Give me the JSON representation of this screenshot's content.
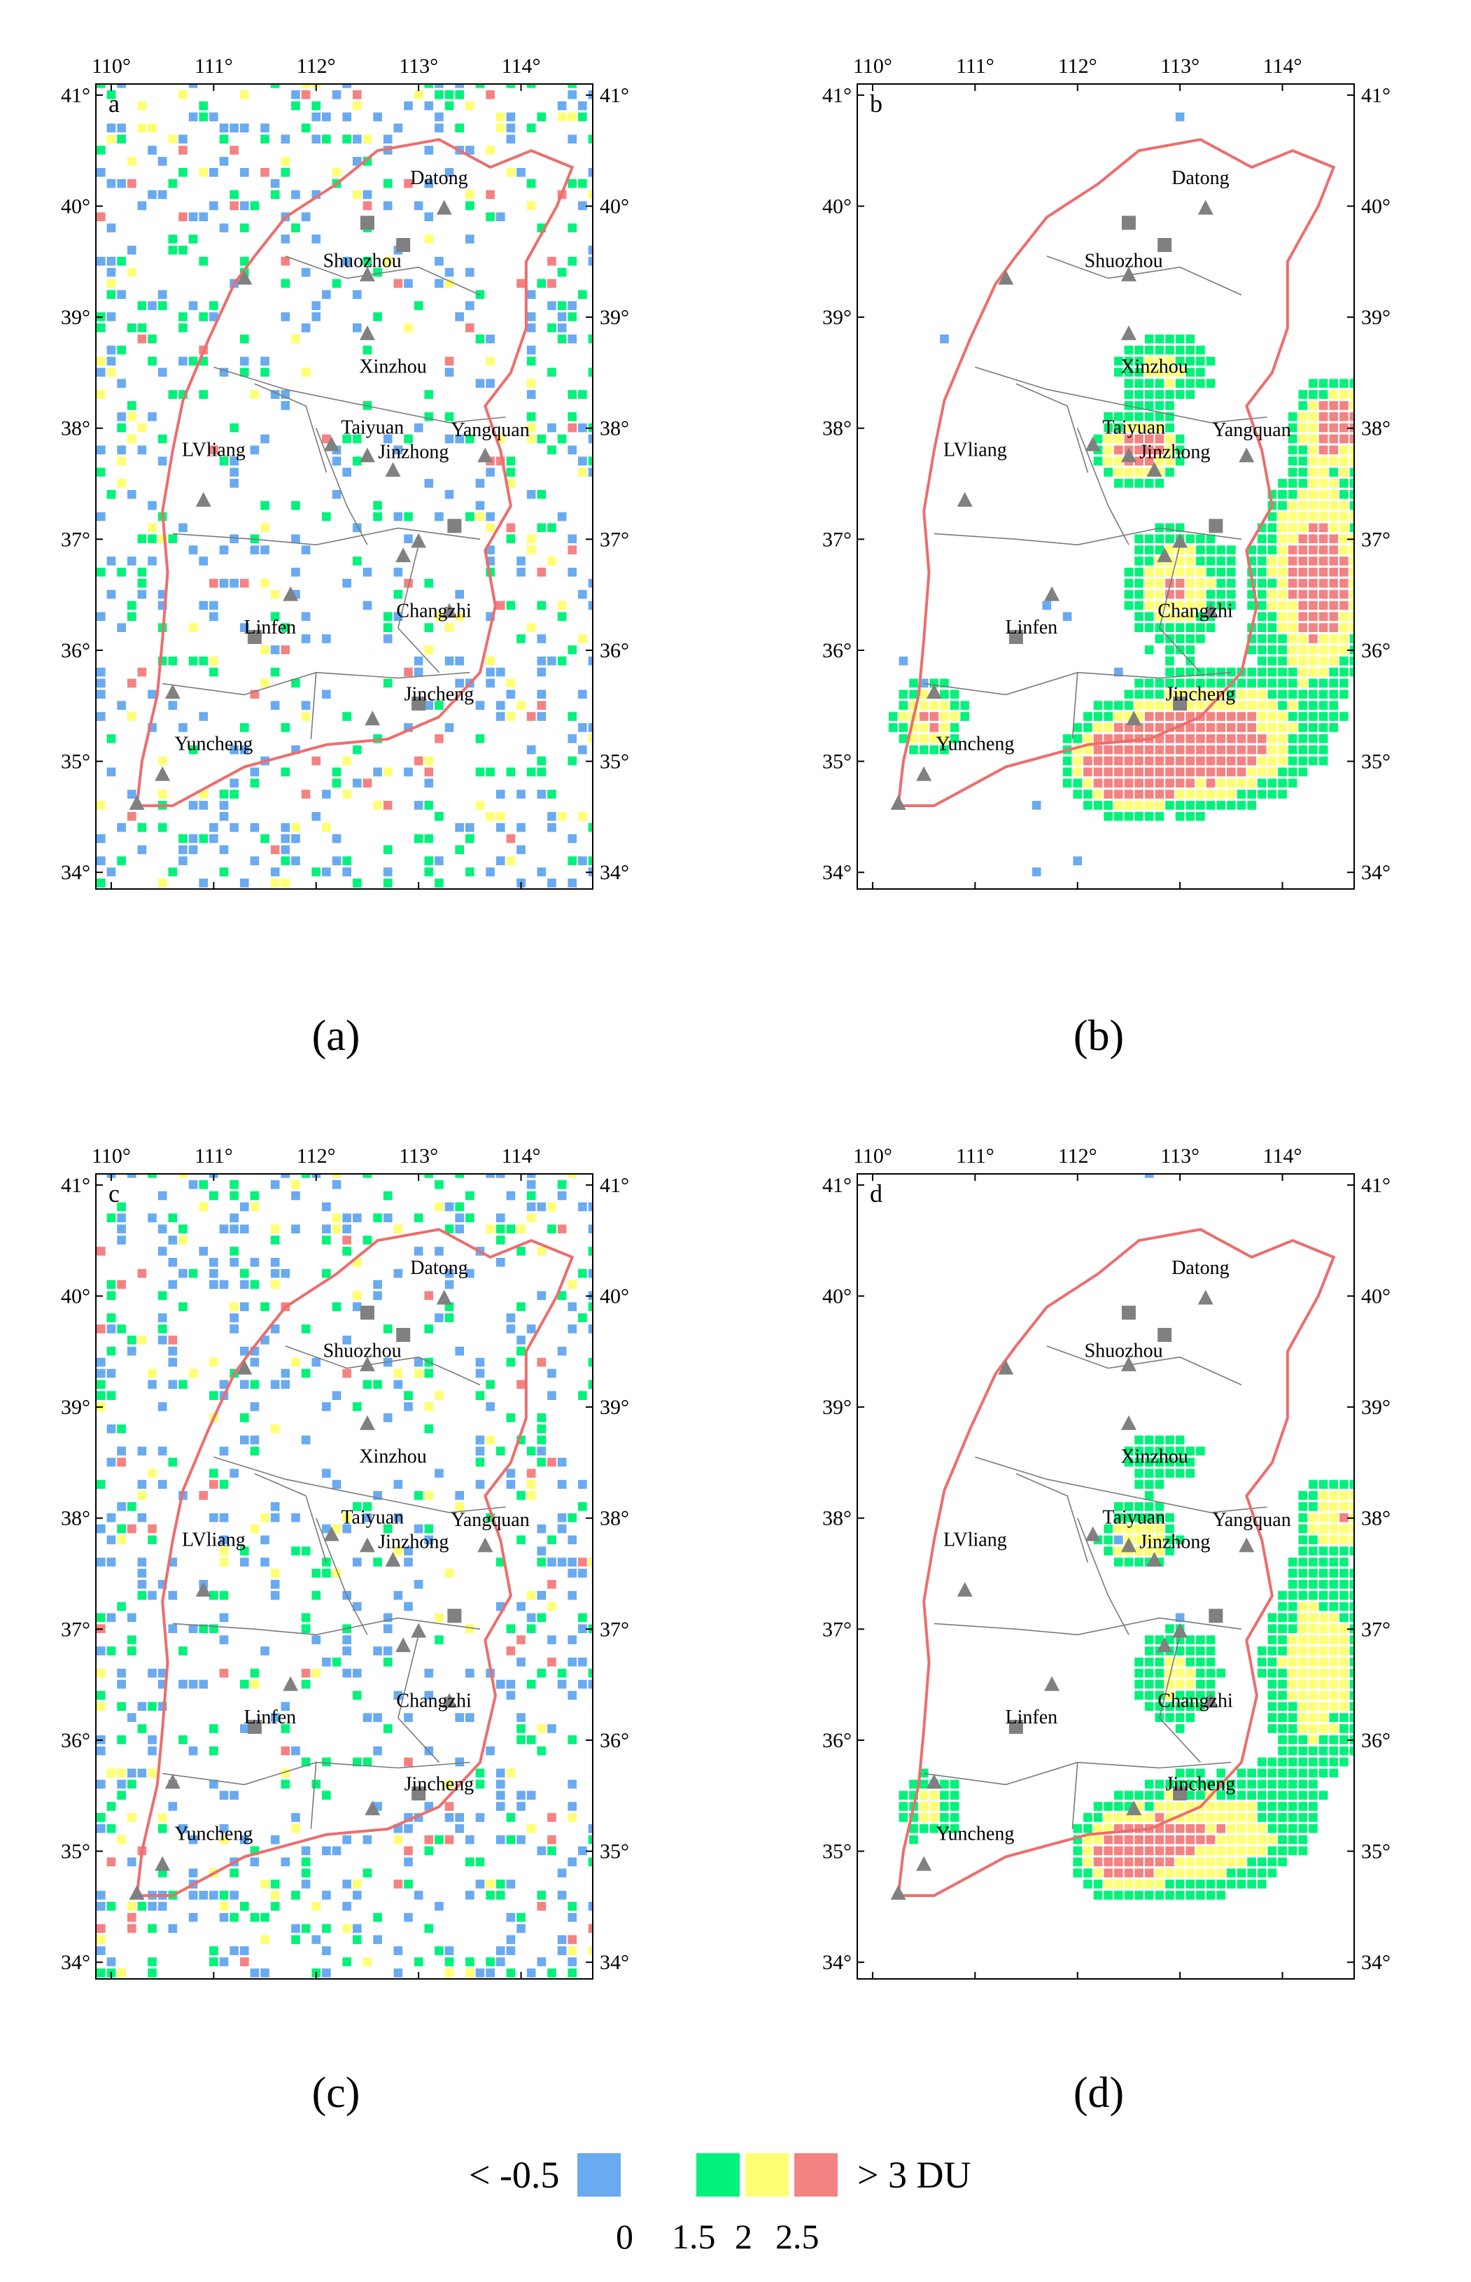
{
  "panels": [
    {
      "id": "a",
      "corner_label": "a",
      "caption": "(a)",
      "style": "scatter",
      "seed": 11
    },
    {
      "id": "b",
      "corner_label": "b",
      "caption": "(b)",
      "style": "plume",
      "seed": 23
    },
    {
      "id": "c",
      "corner_label": "c",
      "caption": "(c)",
      "style": "scatter",
      "seed": 37
    },
    {
      "id": "d",
      "corner_label": "d",
      "caption": "(d)",
      "style": "plume_light",
      "seed": 53
    }
  ],
  "axes": {
    "lon_ticks": [
      "110°",
      "111°",
      "112°",
      "113°",
      "114°"
    ],
    "lat_ticks": [
      "34°",
      "35°",
      "36°",
      "37°",
      "38°",
      "39°",
      "40°",
      "41°"
    ],
    "lon_range": [
      109.85,
      114.7
    ],
    "lat_range": [
      33.85,
      41.1
    ]
  },
  "cities": [
    {
      "name": "Datong",
      "lon": 113.2,
      "lat": 40.2
    },
    {
      "name": "Shuozhou",
      "lon": 112.45,
      "lat": 39.45
    },
    {
      "name": "Xinzhou",
      "lon": 112.75,
      "lat": 38.5
    },
    {
      "name": "Taiyuan",
      "lon": 112.55,
      "lat": 37.95
    },
    {
      "name": "Jinzhong",
      "lon": 112.95,
      "lat": 37.73
    },
    {
      "name": "Yangquan",
      "lon": 113.7,
      "lat": 37.93
    },
    {
      "name": "LVliang",
      "lon": 111.0,
      "lat": 37.75
    },
    {
      "name": "Linfen",
      "lon": 111.55,
      "lat": 36.15
    },
    {
      "name": "Changzhi",
      "lon": 113.15,
      "lat": 36.3
    },
    {
      "name": "Jincheng",
      "lon": 113.2,
      "lat": 35.55
    },
    {
      "name": "Yuncheng",
      "lon": 111.0,
      "lat": 35.1
    }
  ],
  "legend": {
    "low_label": "< -0.5",
    "high_label": "> 3 DU",
    "tick_labels": [
      "0",
      "1.5",
      "2",
      "2.5"
    ],
    "colors": {
      "blue": "#6aaaf0",
      "green": "#00f27a",
      "yellow": "#ffff73",
      "red": "#f58282"
    }
  },
  "colors": {
    "boundary": "#ec6e6e",
    "county_lines": "#7a7a7a",
    "marker_gray": "#808080"
  }
}
